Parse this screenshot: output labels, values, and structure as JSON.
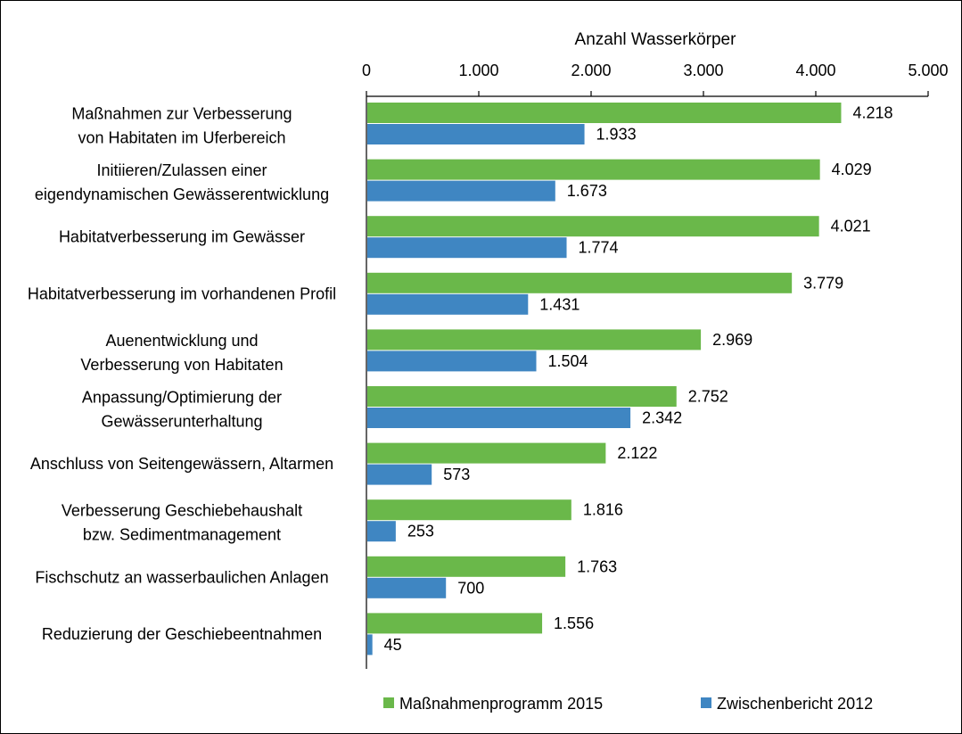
{
  "chart_data": {
    "type": "bar",
    "orientation": "horizontal",
    "xlabel": "Anzahl Wasserkörper",
    "xlim": [
      0,
      5000
    ],
    "xticks": [
      0,
      1000,
      2000,
      3000,
      4000,
      5000
    ],
    "xtick_labels": [
      "0",
      "1.000",
      "2.000",
      "3.000",
      "4.000",
      "5.000"
    ],
    "grid": false,
    "legend_position": "bottom",
    "categories": [
      [
        "Maßnahmen zur Verbesserung",
        "von Habitaten im Uferbereich"
      ],
      [
        "Initiieren/Zulassen einer",
        "eigendynamischen Gewässerentwicklung"
      ],
      [
        "Habitatverbesserung im Gewässer"
      ],
      [
        "Habitatverbesserung im vorhandenen Profil"
      ],
      [
        "Auenentwicklung und",
        "Verbesserung von Habitaten"
      ],
      [
        "Anpassung/Optimierung der",
        "Gewässerunterhaltung"
      ],
      [
        "Anschluss von Seitengewässern, Altarmen"
      ],
      [
        "Verbesserung Geschiebehaushalt",
        "bzw. Sedimentmanagement"
      ],
      [
        "Fischschutz an wasserbaulichen Anlagen"
      ],
      [
        "Reduzierung der Geschiebeentnahmen"
      ]
    ],
    "series": [
      {
        "name": "Maßnahmenprogramm 2015",
        "color": "#6ab84a",
        "values": [
          4218,
          4029,
          4021,
          3779,
          2969,
          2752,
          2122,
          1816,
          1763,
          1556
        ],
        "labels": [
          "4.218",
          "4.029",
          "4.021",
          "3.779",
          "2.969",
          "2.752",
          "2.122",
          "1.816",
          "1.763",
          "1.556"
        ]
      },
      {
        "name": "Zwischenbericht 2012",
        "color": "#3f86c2",
        "values": [
          1933,
          1673,
          1774,
          1431,
          1504,
          2342,
          573,
          253,
          700,
          45
        ],
        "labels": [
          "1.933",
          "1.673",
          "1.774",
          "1.431",
          "1.504",
          "2.342",
          "573",
          "253",
          "700",
          "45"
        ]
      }
    ]
  }
}
